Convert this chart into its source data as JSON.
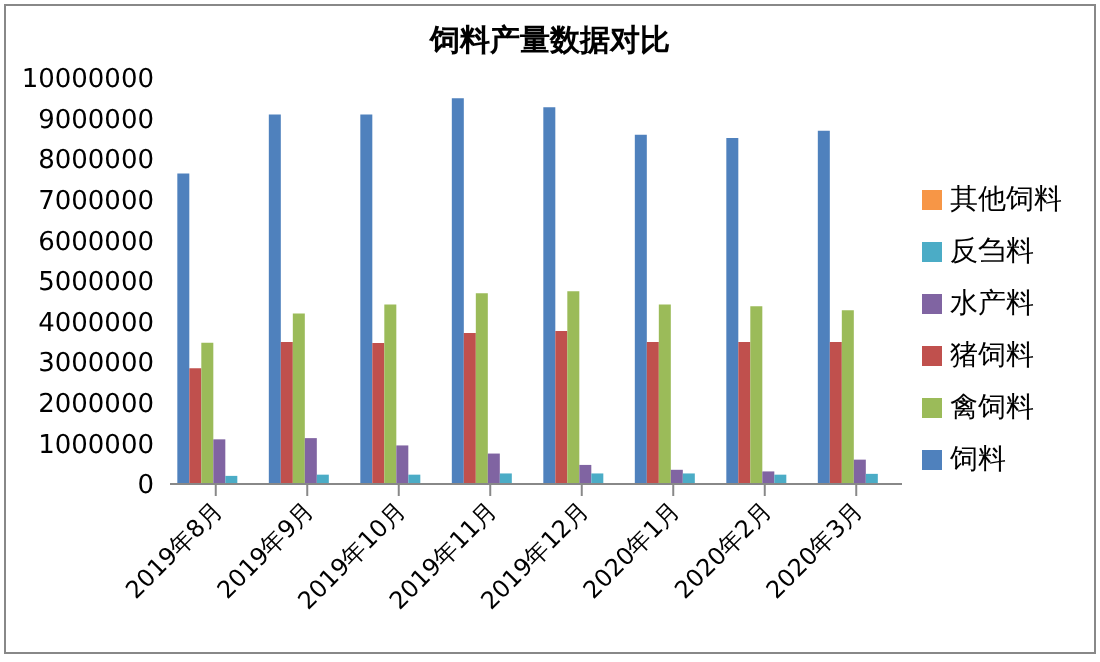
{
  "chart_data": {
    "type": "bar",
    "title": "饲料产量数据对比",
    "categories": [
      "2019年8月",
      "2019年9月",
      "2019年10月",
      "2019年11月",
      "2019年12月",
      "2020年1月",
      "2020年2月",
      "2020年3月"
    ],
    "series": [
      {
        "name": "饲料",
        "color": "#4f81bd",
        "values": [
          7650000,
          9100000,
          9100000,
          9500000,
          9280000,
          8600000,
          8520000,
          8700000
        ]
      },
      {
        "name": "猪饲料",
        "color": "#c0504d",
        "values": [
          2850000,
          3500000,
          3470000,
          3720000,
          3770000,
          3500000,
          3500000,
          3500000
        ]
      },
      {
        "name": "禽饲料",
        "color": "#9bbb59",
        "values": [
          3480000,
          4200000,
          4420000,
          4700000,
          4750000,
          4420000,
          4380000,
          4280000
        ]
      },
      {
        "name": "水产料",
        "color": "#8064a2",
        "values": [
          1100000,
          1130000,
          950000,
          750000,
          470000,
          350000,
          310000,
          600000
        ]
      },
      {
        "name": "反刍料",
        "color": "#4bacc6",
        "values": [
          200000,
          230000,
          230000,
          260000,
          260000,
          260000,
          230000,
          250000
        ]
      },
      {
        "name": "其他饲料",
        "color": "#f79646",
        "values": [
          0,
          0,
          0,
          0,
          0,
          0,
          0,
          0
        ]
      }
    ],
    "ylim": [
      0,
      10000000
    ],
    "yticks": [
      0,
      1000000,
      2000000,
      3000000,
      4000000,
      5000000,
      6000000,
      7000000,
      8000000,
      9000000,
      10000000
    ],
    "grid": false,
    "legend": "right"
  }
}
